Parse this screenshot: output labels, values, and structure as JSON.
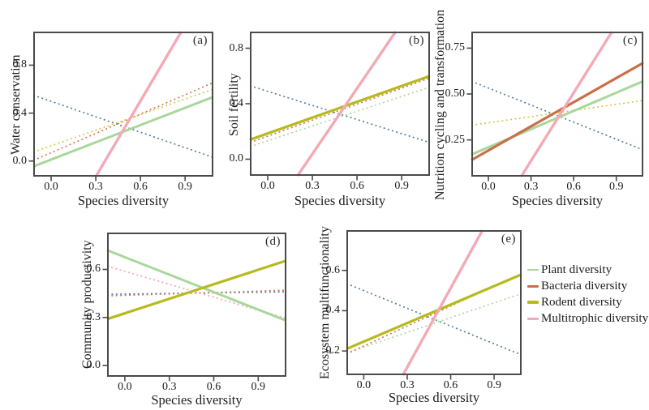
{
  "figure": {
    "legend": {
      "items": [
        {
          "label": "Plant diversity",
          "color": "#a8d79b"
        },
        {
          "label": "Bacteria diversity",
          "color": "#c96f49"
        },
        {
          "label": "Rodent diversity",
          "color": "#b6ba1d"
        },
        {
          "label": "Multitrophic diversity",
          "color": "#f3aab4"
        }
      ]
    }
  },
  "chart_data": [
    {
      "type": "line",
      "tag": "(a)",
      "ylabel": "Water conservation",
      "xlabel": "Species diversity",
      "xlim": [
        -0.12,
        1.09
      ],
      "ylim": [
        -0.13,
        1.08
      ],
      "xticks": [
        0.0,
        0.3,
        0.6,
        0.9
      ],
      "xtick_labels": [
        "0.0",
        "0.3",
        "0.6",
        "0.9"
      ],
      "yticks": [
        0.0,
        0.4,
        0.8
      ],
      "ytick_labels": [
        "0.0",
        "0.4",
        "0.8"
      ],
      "grid": false,
      "series": [
        {
          "name": "Unlabeled teal dashed",
          "style": "dotted",
          "color": "#4c7b97",
          "width": 1.6,
          "x": [
            -0.12,
            1.09
          ],
          "y": [
            0.55,
            0.03
          ]
        },
        {
          "name": "Bacteria diversity",
          "style": "dotted",
          "color": "#d1744f",
          "width": 1.6,
          "x": [
            -0.12,
            1.09
          ],
          "y": [
            0.005,
            0.655
          ]
        },
        {
          "name": "Rodent diversity",
          "style": "dotted",
          "color": "#d2c944",
          "width": 1.6,
          "x": [
            -0.12,
            1.09
          ],
          "y": [
            0.075,
            0.6
          ]
        },
        {
          "name": "Plant diversity",
          "style": "solid",
          "color": "#a8d79b",
          "width": 3,
          "x": [
            -0.12,
            1.09
          ],
          "y": [
            -0.045,
            0.535
          ]
        },
        {
          "name": "Multitrophic diversity",
          "style": "solid",
          "color": "#f3aab4",
          "width": 3.4,
          "x": [
            0.3,
            0.875
          ],
          "y": [
            -0.13,
            1.08
          ]
        }
      ]
    },
    {
      "type": "line",
      "tag": "(b)",
      "ylabel": "Soil fertility",
      "xlabel": "Species diversity",
      "xlim": [
        -0.12,
        1.09
      ],
      "ylim": [
        -0.12,
        0.92
      ],
      "xticks": [
        0.0,
        0.3,
        0.6,
        0.9
      ],
      "xtick_labels": [
        "0.0",
        "0.3",
        "0.6",
        "0.9"
      ],
      "yticks": [
        0.0,
        0.4,
        0.8
      ],
      "ytick_labels": [
        "0.0",
        "0.4",
        "0.8"
      ],
      "grid": false,
      "series": [
        {
          "name": "Unlabeled teal dashed",
          "style": "dotted",
          "color": "#4c7b97",
          "width": 1.6,
          "x": [
            -0.12,
            1.09
          ],
          "y": [
            0.53,
            0.12
          ]
        },
        {
          "name": "Plant diversity",
          "style": "dotted",
          "color": "#a8d79b",
          "width": 1.6,
          "x": [
            -0.12,
            1.09
          ],
          "y": [
            0.09,
            0.52
          ]
        },
        {
          "name": "Bacteria diversity",
          "style": "dotted",
          "color": "#d1744f",
          "width": 1.6,
          "x": [
            -0.12,
            1.09
          ],
          "y": [
            0.12,
            0.585
          ]
        },
        {
          "name": "Rodent diversity",
          "style": "solid",
          "color": "#b6ba1d",
          "width": 3.2,
          "x": [
            -0.12,
            1.09
          ],
          "y": [
            0.14,
            0.6
          ]
        },
        {
          "name": "Multitrophic diversity",
          "style": "solid",
          "color": "#f3aab4",
          "width": 3.4,
          "x": [
            0.2,
            0.86
          ],
          "y": [
            -0.12,
            0.92
          ]
        }
      ]
    },
    {
      "type": "line",
      "tag": "(c)",
      "ylabel": "Nutrition cycling and transformation",
      "xlabel": "Species diversity",
      "xlim": [
        -0.12,
        1.09
      ],
      "ylim": [
        0.05,
        0.84
      ],
      "xticks": [
        0.0,
        0.3,
        0.6,
        0.9
      ],
      "xtick_labels": [
        "0.0",
        "0.3",
        "0.6",
        "0.9"
      ],
      "yticks": [
        0.25,
        0.5,
        0.75
      ],
      "ytick_labels": [
        "0.25",
        "0.50",
        "0.75"
      ],
      "grid": false,
      "series": [
        {
          "name": "Unlabeled teal dashed",
          "style": "dotted",
          "color": "#4c7b97",
          "width": 1.6,
          "x": [
            -0.12,
            1.09
          ],
          "y": [
            0.57,
            0.195
          ]
        },
        {
          "name": "Rodent diversity",
          "style": "dotted",
          "color": "#d2c944",
          "width": 1.6,
          "x": [
            -0.12,
            1.09
          ],
          "y": [
            0.33,
            0.465
          ]
        },
        {
          "name": "Plant diversity",
          "style": "solid",
          "color": "#a8d79b",
          "width": 3,
          "x": [
            -0.12,
            1.09
          ],
          "y": [
            0.17,
            0.57
          ]
        },
        {
          "name": "Bacteria diversity",
          "style": "solid",
          "color": "#c96f49",
          "width": 3.2,
          "x": [
            -0.12,
            1.09
          ],
          "y": [
            0.14,
            0.67
          ]
        },
        {
          "name": "Multitrophic diversity",
          "style": "solid",
          "color": "#f3aab4",
          "width": 3.4,
          "x": [
            0.23,
            0.87
          ],
          "y": [
            0.05,
            0.84
          ]
        }
      ]
    },
    {
      "type": "line",
      "tag": "(d)",
      "ylabel": "Community productivity",
      "xlabel": "Species diversity",
      "xlim": [
        -0.12,
        1.09
      ],
      "ylim": [
        -0.07,
        0.83
      ],
      "xticks": [
        0.0,
        0.3,
        0.6,
        0.9
      ],
      "xtick_labels": [
        "0.0",
        "0.3",
        "0.6",
        "0.9"
      ],
      "yticks": [
        0.0,
        0.3,
        0.6
      ],
      "ytick_labels": [
        "0.0",
        "0.3",
        "0.6"
      ],
      "grid": false,
      "series": [
        {
          "name": "Unlabeled teal dashed",
          "style": "dotted",
          "color": "#4c7b97",
          "width": 1.6,
          "x": [
            -0.12,
            1.09
          ],
          "y": [
            0.445,
            0.46
          ]
        },
        {
          "name": "Bacteria diversity",
          "style": "dotted",
          "color": "#d1744f",
          "width": 1.6,
          "x": [
            -0.12,
            1.09
          ],
          "y": [
            0.435,
            0.47
          ]
        },
        {
          "name": "Multitrophic diversity",
          "style": "dotted",
          "color": "#f3aab4",
          "width": 1.8,
          "x": [
            -0.12,
            1.09
          ],
          "y": [
            0.62,
            0.295
          ]
        },
        {
          "name": "Plant diversity",
          "style": "solid",
          "color": "#a8d79b",
          "width": 3,
          "x": [
            -0.12,
            1.09
          ],
          "y": [
            0.72,
            0.28
          ]
        },
        {
          "name": "Rodent diversity",
          "style": "solid",
          "color": "#b6ba1d",
          "width": 3.2,
          "x": [
            -0.12,
            1.09
          ],
          "y": [
            0.29,
            0.655
          ]
        }
      ]
    },
    {
      "type": "line",
      "tag": "(e)",
      "ylabel": "Ecosystem multifunctionality",
      "xlabel": "Species diversity",
      "xlim": [
        -0.12,
        1.09
      ],
      "ylim": [
        0.08,
        0.8
      ],
      "xticks": [
        0.0,
        0.3,
        0.6,
        0.9
      ],
      "xtick_labels": [
        "0.0",
        "0.3",
        "0.6",
        "0.9"
      ],
      "yticks": [
        0.2,
        0.4,
        0.6
      ],
      "ytick_labels": [
        "0.2",
        "0.4",
        "0.6"
      ],
      "grid": false,
      "series": [
        {
          "name": "Unlabeled teal dashed",
          "style": "dotted",
          "color": "#4c7b97",
          "width": 1.6,
          "x": [
            -0.12,
            1.09
          ],
          "y": [
            0.535,
            0.18
          ]
        },
        {
          "name": "Plant diversity",
          "style": "dotted",
          "color": "#a8d79b",
          "width": 1.6,
          "x": [
            -0.12,
            1.09
          ],
          "y": [
            0.19,
            0.485
          ]
        },
        {
          "name": "Bacteria diversity",
          "style": "dotted",
          "color": "#d1744f",
          "width": 1.6,
          "x": [
            -0.12,
            1.09
          ],
          "y": [
            0.185,
            0.585
          ]
        },
        {
          "name": "Rodent diversity",
          "style": "solid",
          "color": "#b6ba1d",
          "width": 3.2,
          "x": [
            -0.12,
            1.09
          ],
          "y": [
            0.21,
            0.58
          ]
        },
        {
          "name": "Multitrophic diversity",
          "style": "solid",
          "color": "#f3aab4",
          "width": 3.4,
          "x": [
            0.27,
            0.82
          ],
          "y": [
            0.08,
            0.8
          ]
        }
      ]
    }
  ]
}
